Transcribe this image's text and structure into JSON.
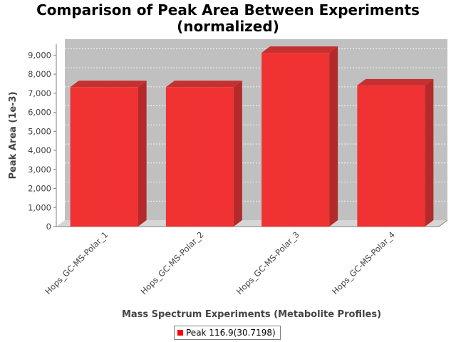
{
  "chart_data": {
    "type": "bar",
    "title_line1": "Comparison of Peak Area Between Experiments",
    "title_line2": "(normalized)",
    "xlabel": "Mass Spectrum Experiments (Metabolite Profiles)",
    "ylabel": "Peak Area (1e-3)",
    "categories": [
      "Hops_GC-MS-Polar_1",
      "Hops_GC-MS-Polar_2",
      "Hops_GC-MS-Polar_3",
      "Hops_GC-MS-Polar_4"
    ],
    "series": [
      {
        "name": "Peak 116.9(30.7198)",
        "values": [
          7320,
          7320,
          9120,
          7410
        ]
      }
    ],
    "ylim": [
      0,
      9500
    ],
    "yticks": [
      0,
      1000,
      2000,
      3000,
      4000,
      5000,
      6000,
      7000,
      8000,
      9000
    ],
    "ytick_labels": [
      "0",
      "1,000",
      "2,000",
      "3,000",
      "4,000",
      "5,000",
      "6,000",
      "7,000",
      "8,000",
      "9,000"
    ],
    "grid": true,
    "legend_position": "bottom",
    "bar_color": "#FF0000",
    "plot_background": "#C0C0C0"
  }
}
